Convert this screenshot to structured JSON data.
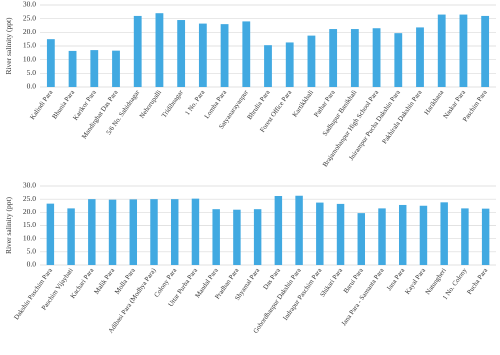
{
  "chart_data": [
    {
      "type": "bar",
      "y_label": "River salinity (ppt)",
      "color": "#41a9e1",
      "grid": true,
      "ylim": [
        0,
        30
      ],
      "yticks": [
        {
          "value": 0,
          "label": "0.0"
        },
        {
          "value": 5,
          "label": "5.0"
        },
        {
          "value": 10,
          "label": "10.0"
        },
        {
          "value": 15,
          "label": "15.0"
        },
        {
          "value": 20,
          "label": "20.0"
        },
        {
          "value": 25,
          "label": "25.0"
        },
        {
          "value": 30,
          "label": "30.0"
        }
      ],
      "categories": [
        "Kalindi Para",
        "Bhunia Para",
        "Karikor Para",
        "Mandirghat Das Para",
        "5/6 No. Sahidnagar",
        "Nehorupalli",
        "Tridibnagar",
        "1 No. Para",
        "Lomba Para",
        "Satyanarayanpur",
        "Bhrulia Para",
        "Forest Office Para",
        "Kartikkhali",
        "Pathar Para",
        "Sadhupur Banikhali",
        "Brajamohanpur High School Para",
        "Jnirampur Pucha Dakshin Para",
        "Pakhirala Dakshin Para",
        "Harikhana",
        "Naskar Para",
        "Paschim Para"
      ],
      "values": [
        17.5,
        13.2,
        13.5,
        13.3,
        26,
        27,
        24.5,
        23.2,
        23,
        24,
        15.3,
        16.3,
        18.8,
        21.2,
        21.2,
        21.5,
        19.7,
        21.8,
        26.5,
        26.5,
        26
      ]
    },
    {
      "type": "bar",
      "y_label": "River salinity (ppt)",
      "color": "#41a9e1",
      "grid": true,
      "ylim": [
        0,
        30
      ],
      "yticks": [
        {
          "value": 0,
          "label": "0.0"
        },
        {
          "value": 5,
          "label": "5.0"
        },
        {
          "value": 10,
          "label": "10.0"
        },
        {
          "value": 15,
          "label": "15.0"
        },
        {
          "value": 20,
          "label": "20.0"
        },
        {
          "value": 25,
          "label": "25.0"
        },
        {
          "value": 30,
          "label": "30.0"
        }
      ],
      "categories": [
        "Dakshin Paschim Para",
        "Paschim Vijaybati",
        "Kachari Para",
        "Malik Para",
        "Molla Para",
        "Adibasi Para (Modhya Para)",
        "Colony Para",
        "Uttar Purba Para",
        "Mandal Para",
        "Pradhan Para",
        "Shyamal Para",
        "Das Para",
        "Gobordhanpur Dakshin Para",
        "Indrapur Paschim Para",
        "Shikari Para",
        "Barui Para",
        "Jana Para - Samanta Para",
        "Jana Para",
        "Kayal Para",
        "Natungheri",
        "1 No. Colony",
        "Pucha Para"
      ],
      "values": [
        23.3,
        21.5,
        25,
        24.8,
        24.9,
        25,
        25,
        25.2,
        21.2,
        21,
        21.2,
        26.2,
        26.3,
        23.7,
        23.2,
        19.7,
        21.5,
        22.8,
        22.5,
        23.8,
        21.5,
        21.4
      ]
    }
  ]
}
